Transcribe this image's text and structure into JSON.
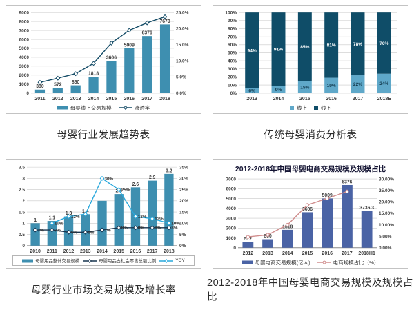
{
  "page": {
    "background": "#ffffff",
    "grid_color": "#c9c9c9",
    "axis_color": "#8a8a8a",
    "tick_text_color": "#3c3c3c"
  },
  "chart_data": [
    {
      "id": "industry-trend",
      "type": "bar+line",
      "caption": "母婴行业发展趋势表",
      "categories": [
        "2011",
        "2012",
        "2013",
        "2014",
        "2015",
        "2016",
        "2017",
        "2018"
      ],
      "left_axis": {
        "min": 0,
        "max": 9000,
        "ticks": [
          "0",
          "1000",
          "2000",
          "3000",
          "4000",
          "5000",
          "6000",
          "7000",
          "8000",
          "9000"
        ]
      },
      "right_axis": {
        "min": 0,
        "max": 25,
        "ticks": [
          "0.0%",
          "5.0%",
          "10.0%",
          "15.0%",
          "20.0%",
          "25.0%"
        ]
      },
      "bars": {
        "name": "母婴线上交易规模",
        "color": "#3e8fb0",
        "values": [
          380,
          572,
          860,
          1818,
          3606,
          5009,
          6376,
          7670
        ],
        "labels": [
          "380",
          "572",
          "860",
          "1818",
          "3606",
          "5009",
          "6376",
          "7670"
        ]
      },
      "lines": [
        {
          "name": "渗透率",
          "color": "#134b66",
          "marker": "diamond",
          "values": [
            3.3,
            4.6,
            6.0,
            9.2,
            15.5,
            19.5,
            21.8,
            23.7
          ]
        }
      ]
    },
    {
      "id": "traditional-consumption",
      "type": "stacked-bar",
      "caption": "传统母婴消费分析表",
      "categories": [
        "2013",
        "2014",
        "2015",
        "2016",
        "2017",
        "2018E"
      ],
      "left_axis": {
        "min": 0,
        "max": 100,
        "ticks": [
          "0%",
          "10%",
          "20%",
          "30%",
          "40%",
          "50%",
          "60%",
          "70%",
          "80%",
          "90%",
          "100%"
        ]
      },
      "stacks": [
        {
          "name": "线上",
          "color": "#5fa8c9",
          "label_color": "#123a4e",
          "values": [
            6,
            9,
            15,
            19,
            22,
            24
          ],
          "labels": [
            "6%",
            "9%",
            "15%",
            "19%",
            "22%",
            "24%"
          ]
        },
        {
          "name": "线下",
          "color": "#0f4d68",
          "label_color": "#ffffff",
          "values": [
            94,
            91,
            85,
            81,
            78,
            76
          ],
          "labels": [
            "94%",
            "91%",
            "85%",
            "81%",
            "78%",
            "76%"
          ]
        }
      ]
    },
    {
      "id": "market-scale-growth",
      "type": "bar+line",
      "caption": "母婴行业市场交易规模及增长率",
      "categories": [
        "2010",
        "2011",
        "2012",
        "2013",
        "2014",
        "2015",
        "2016",
        "2017",
        "2018"
      ],
      "left_axis": {
        "min": 0,
        "max": 3.5,
        "ticks": [
          "0",
          "0.5",
          "1",
          "1.5",
          "2",
          "2.5",
          "3",
          "3.5"
        ]
      },
      "right_axis": {
        "min": 0,
        "max": 35,
        "ticks": [
          "0%",
          "5%",
          "10%",
          "15%",
          "20%",
          "25%",
          "30%",
          "35%"
        ]
      },
      "bars": {
        "name": "母婴用品整体交易规模",
        "color": "#3e8fb0",
        "values": [
          1,
          1.1,
          1.3,
          1.4,
          2,
          2.3,
          2.6,
          2.9,
          3.2
        ],
        "labels": [
          "1",
          "1.1",
          "1.3",
          "1.4",
          "",
          "2.3",
          "2.6",
          "2.9",
          "3.2"
        ]
      },
      "lines": [
        {
          "name": "母婴用品占社会零售总额比例",
          "color": "#17344f",
          "marker": "diamond",
          "values": [
            7,
            7,
            6,
            6,
            7,
            8,
            8,
            8,
            8
          ],
          "labels": [
            "7%",
            "7%",
            "6%",
            "6%",
            "7%",
            "8%",
            "8%",
            "8%",
            "8%"
          ]
        },
        {
          "name": "YOY",
          "color": "#29a8dc",
          "marker": "diamond",
          "values": [
            null,
            10,
            13,
            14,
            30,
            25,
            13,
            12,
            10
          ],
          "labels": [
            "",
            "10%",
            "13%",
            "",
            "30%",
            "25%",
            "13%",
            "12%",
            "10%"
          ]
        }
      ]
    },
    {
      "id": "ecommerce-scale",
      "type": "bar+line",
      "title": "2012-2018年中国母婴电商交易规模及规模占比",
      "caption": "2012-2018年中国母婴电商交易规模及规模占比",
      "categories": [
        "2012",
        "2013",
        "2014",
        "2015",
        "2016",
        "2017",
        "2018H1"
      ],
      "left_axis": {
        "min": 0,
        "max": 7000,
        "ticks": [
          "0",
          "1000",
          "2000",
          "3000",
          "4000",
          "5000",
          "6000",
          "7000"
        ]
      },
      "right_axis": {
        "min": 0,
        "max": 30,
        "ticks": [
          "0.00%",
          "5.00%",
          "10.00%",
          "15.00%",
          "20.00%",
          "25.00%",
          "30.00%"
        ]
      },
      "bars": {
        "name": "母婴电商交易规模(亿人)",
        "color": "#4a63a5",
        "values": [
          572,
          860,
          1818,
          3606,
          5009,
          6376,
          3736.3
        ],
        "labels": [
          "572",
          "860",
          "1818",
          "3606",
          "5009",
          "6376",
          "3736.3"
        ]
      },
      "lines": [
        {
          "name": "电商规模占比（%）",
          "color": "#d08d8d",
          "marker": "circle",
          "values": [
            4.7,
            5.6,
            10.0,
            18.6,
            21.5,
            24.5
          ]
        }
      ]
    }
  ]
}
